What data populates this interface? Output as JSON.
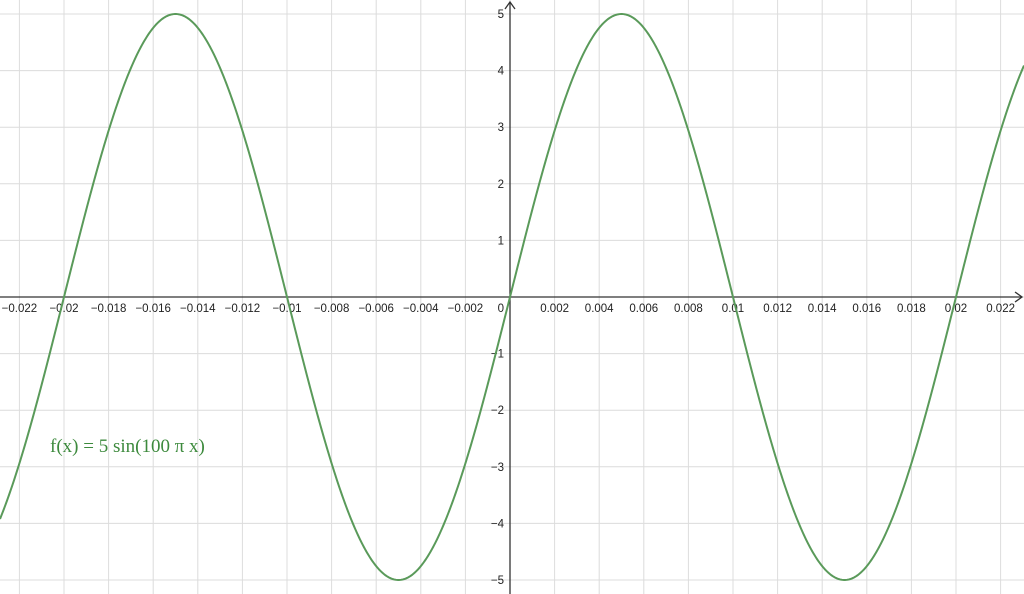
{
  "chart_data": {
    "type": "line",
    "function": "5 sin(100 π x)",
    "label": "f(x)  =  5  sin(100 π x)",
    "amplitude": 5,
    "angular_coefficient": 100,
    "xlim": [
      -0.0229,
      0.023
    ],
    "ylim": [
      -5.2,
      5.25
    ],
    "x_ticks": [
      -0.022,
      -0.02,
      -0.018,
      -0.016,
      -0.014,
      -0.012,
      -0.01,
      -0.008,
      -0.006,
      -0.004,
      -0.002,
      0.002,
      0.004,
      0.006,
      0.008,
      0.01,
      0.012,
      0.014,
      0.016,
      0.018,
      0.02,
      0.022
    ],
    "x_tick_labels": [
      "−0.022",
      "−0.02",
      "−0.018",
      "−0.016",
      "−0.014",
      "−0.012",
      "−0.01",
      "−0.008",
      "−0.006",
      "−0.004",
      "−0.002",
      "0.002",
      "0.004",
      "0.006",
      "0.008",
      "0.01",
      "0.012",
      "0.014",
      "0.016",
      "0.018",
      "0.02",
      "0.022"
    ],
    "y_ticks": [
      -5,
      -4,
      -3,
      -2,
      -1,
      1,
      2,
      3,
      4,
      5
    ],
    "y_tick_labels": [
      "−5",
      "−4",
      "−3",
      "−2",
      "−1",
      "1",
      "2",
      "3",
      "4",
      "5"
    ],
    "origin_label": "0",
    "grid": true,
    "colors": {
      "curve": "#5a9a5a",
      "label": "#3d8a3d",
      "grid": "#dcdcdc",
      "axis": "#333333"
    }
  }
}
